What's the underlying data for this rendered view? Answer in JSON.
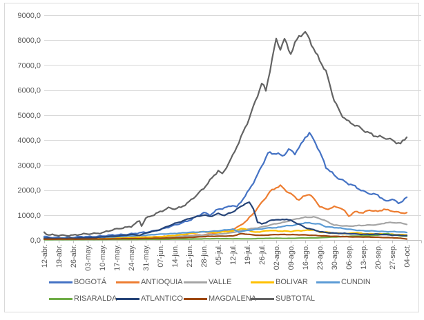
{
  "chart_data": {
    "type": "line",
    "title": "",
    "grid": true,
    "legend_position": "bottom",
    "x_axis": {
      "tick_labels": [
        "12-abr.",
        "19-abr.",
        "26-abr.",
        "03-may.",
        "10-may.",
        "17-may.",
        "24-may.",
        "31-may.",
        "07-jun.",
        "14-jun.",
        "21-jun.",
        "28-jun.",
        "05-jul.",
        "12-jul.",
        "19-jul.",
        "26-jul.",
        "02-ago.",
        "09-ago.",
        "16-ago.",
        "23-ago.",
        "30-ago.",
        "06-sep.",
        "13-sep.",
        "20-sep.",
        "27-sep.",
        "04-oct."
      ],
      "days_per_tick": 7
    },
    "y_axis": {
      "min": 0,
      "max": 9000,
      "step": 1000,
      "tick_labels": [
        "0,0",
        "1000,0",
        "2000,0",
        "3000,0",
        "4000,0",
        "5000,0",
        "6000,0",
        "7000,0",
        "8000,0",
        "9000,0"
      ]
    },
    "axis_colors": {
      "label": "#595959",
      "gridline": "#D9D9D9",
      "axis_line": "#BFBFBF"
    },
    "series": [
      {
        "name": "BOGOTÁ",
        "color": "#4472C4",
        "noise": 95,
        "anchors": [
          [
            0,
            140
          ],
          [
            3,
            90
          ],
          [
            7,
            95
          ],
          [
            14,
            110
          ],
          [
            21,
            130
          ],
          [
            28,
            160
          ],
          [
            35,
            200
          ],
          [
            42,
            250
          ],
          [
            49,
            300
          ],
          [
            56,
            420
          ],
          [
            63,
            580
          ],
          [
            70,
            800
          ],
          [
            74,
            950
          ],
          [
            77,
            1080
          ],
          [
            80,
            1000
          ],
          [
            84,
            1250
          ],
          [
            88,
            1300
          ],
          [
            91,
            1380
          ],
          [
            93,
            1300
          ],
          [
            98,
            1900
          ],
          [
            103,
            2600
          ],
          [
            108,
            3450
          ],
          [
            112,
            3500
          ],
          [
            115,
            3380
          ],
          [
            118,
            3600
          ],
          [
            121,
            3450
          ],
          [
            124,
            3800
          ],
          [
            126,
            4150
          ],
          [
            128,
            4300
          ],
          [
            131,
            3900
          ],
          [
            133,
            3500
          ],
          [
            136,
            2900
          ],
          [
            140,
            2600
          ],
          [
            145,
            2350
          ],
          [
            147,
            2250
          ],
          [
            154,
            1950
          ],
          [
            161,
            1800
          ],
          [
            165,
            1520
          ],
          [
            168,
            1650
          ],
          [
            171,
            1480
          ],
          [
            175,
            1700
          ]
        ]
      },
      {
        "name": "ANTIOQUIA",
        "color": "#ED7D31",
        "noise": 55,
        "anchors": [
          [
            0,
            60
          ],
          [
            14,
            70
          ],
          [
            28,
            85
          ],
          [
            42,
            100
          ],
          [
            56,
            130
          ],
          [
            70,
            170
          ],
          [
            77,
            210
          ],
          [
            84,
            290
          ],
          [
            91,
            430
          ],
          [
            95,
            600
          ],
          [
            98,
            800
          ],
          [
            101,
            1050
          ],
          [
            105,
            1500
          ],
          [
            109,
            1950
          ],
          [
            112,
            2100
          ],
          [
            114,
            2150
          ],
          [
            117,
            1950
          ],
          [
            119,
            1850
          ],
          [
            123,
            1620
          ],
          [
            126,
            1780
          ],
          [
            128,
            1830
          ],
          [
            131,
            1550
          ],
          [
            133,
            1350
          ],
          [
            136,
            1240
          ],
          [
            140,
            1330
          ],
          [
            143,
            1280
          ],
          [
            145,
            1150
          ],
          [
            147,
            950
          ],
          [
            150,
            1140
          ],
          [
            154,
            1100
          ],
          [
            157,
            1190
          ],
          [
            161,
            1130
          ],
          [
            164,
            1240
          ],
          [
            168,
            1170
          ],
          [
            172,
            1080
          ],
          [
            175,
            1070
          ]
        ]
      },
      {
        "name": "VALLE",
        "color": "#A5A5A5",
        "noise": 25,
        "anchors": [
          [
            0,
            50
          ],
          [
            14,
            60
          ],
          [
            28,
            75
          ],
          [
            42,
            95
          ],
          [
            56,
            120
          ],
          [
            70,
            160
          ],
          [
            77,
            190
          ],
          [
            84,
            230
          ],
          [
            91,
            300
          ],
          [
            98,
            430
          ],
          [
            105,
            520
          ],
          [
            112,
            650
          ],
          [
            116,
            720
          ],
          [
            119,
            790
          ],
          [
            123,
            860
          ],
          [
            126,
            900
          ],
          [
            130,
            930
          ],
          [
            133,
            870
          ],
          [
            136,
            760
          ],
          [
            140,
            590
          ],
          [
            147,
            560
          ],
          [
            154,
            580
          ],
          [
            161,
            620
          ],
          [
            165,
            690
          ],
          [
            168,
            690
          ],
          [
            172,
            680
          ],
          [
            175,
            640
          ]
        ]
      },
      {
        "name": "BOLIVAR",
        "color": "#FFC000",
        "noise": 25,
        "anchors": [
          [
            0,
            40
          ],
          [
            14,
            50
          ],
          [
            28,
            60
          ],
          [
            42,
            90
          ],
          [
            56,
            130
          ],
          [
            63,
            180
          ],
          [
            70,
            260
          ],
          [
            77,
            330
          ],
          [
            81,
            300
          ],
          [
            84,
            310
          ],
          [
            91,
            350
          ],
          [
            95,
            460
          ],
          [
            98,
            430
          ],
          [
            101,
            310
          ],
          [
            105,
            330
          ],
          [
            109,
            390
          ],
          [
            112,
            370
          ],
          [
            119,
            340
          ],
          [
            123,
            375
          ],
          [
            126,
            390
          ],
          [
            130,
            410
          ],
          [
            133,
            300
          ],
          [
            136,
            315
          ],
          [
            140,
            280
          ],
          [
            147,
            250
          ],
          [
            150,
            290
          ],
          [
            154,
            260
          ],
          [
            161,
            240
          ],
          [
            168,
            230
          ],
          [
            175,
            205
          ]
        ]
      },
      {
        "name": "CUNDIN",
        "color": "#5B9BD5",
        "noise": 22,
        "anchors": [
          [
            0,
            95
          ],
          [
            3,
            60
          ],
          [
            14,
            75
          ],
          [
            28,
            110
          ],
          [
            42,
            160
          ],
          [
            56,
            230
          ],
          [
            63,
            265
          ],
          [
            70,
            300
          ],
          [
            77,
            330
          ],
          [
            84,
            360
          ],
          [
            91,
            440
          ],
          [
            94,
            320
          ],
          [
            98,
            380
          ],
          [
            105,
            450
          ],
          [
            109,
            500
          ],
          [
            112,
            480
          ],
          [
            116,
            560
          ],
          [
            119,
            580
          ],
          [
            123,
            640
          ],
          [
            126,
            690
          ],
          [
            129,
            660
          ],
          [
            133,
            640
          ],
          [
            136,
            540
          ],
          [
            140,
            500
          ],
          [
            147,
            430
          ],
          [
            154,
            370
          ],
          [
            161,
            350
          ],
          [
            168,
            335
          ],
          [
            172,
            320
          ],
          [
            175,
            300
          ]
        ]
      },
      {
        "name": "RISARALDA",
        "color": "#70AD47",
        "noise": 10,
        "anchors": [
          [
            0,
            15
          ],
          [
            28,
            20
          ],
          [
            56,
            30
          ],
          [
            77,
            45
          ],
          [
            84,
            55
          ],
          [
            98,
            45
          ],
          [
            105,
            60
          ],
          [
            112,
            70
          ],
          [
            119,
            65
          ],
          [
            126,
            80
          ],
          [
            133,
            90
          ],
          [
            140,
            120
          ],
          [
            147,
            150
          ],
          [
            154,
            160
          ],
          [
            161,
            200
          ],
          [
            164,
            240
          ],
          [
            166,
            250
          ],
          [
            168,
            210
          ],
          [
            172,
            170
          ],
          [
            175,
            150
          ]
        ]
      },
      {
        "name": "ATLANTICO",
        "color": "#264478",
        "noise": 35,
        "anchors": [
          [
            0,
            70
          ],
          [
            7,
            60
          ],
          [
            14,
            70
          ],
          [
            21,
            90
          ],
          [
            28,
            120
          ],
          [
            35,
            160
          ],
          [
            42,
            220
          ],
          [
            46,
            180
          ],
          [
            49,
            280
          ],
          [
            56,
            420
          ],
          [
            63,
            660
          ],
          [
            70,
            860
          ],
          [
            74,
            930
          ],
          [
            77,
            1000
          ],
          [
            80,
            950
          ],
          [
            84,
            1060
          ],
          [
            87,
            980
          ],
          [
            91,
            1120
          ],
          [
            95,
            1350
          ],
          [
            97,
            1470
          ],
          [
            99,
            1500
          ],
          [
            101,
            1250
          ],
          [
            103,
            700
          ],
          [
            105,
            640
          ],
          [
            107,
            700
          ],
          [
            109,
            780
          ],
          [
            112,
            830
          ],
          [
            114,
            800
          ],
          [
            117,
            830
          ],
          [
            119,
            780
          ],
          [
            121,
            700
          ],
          [
            123,
            640
          ],
          [
            126,
            500
          ],
          [
            129,
            430
          ],
          [
            133,
            330
          ],
          [
            136,
            300
          ],
          [
            140,
            280
          ],
          [
            147,
            250
          ],
          [
            154,
            230
          ],
          [
            161,
            230
          ],
          [
            168,
            200
          ],
          [
            172,
            190
          ],
          [
            175,
            170
          ]
        ]
      },
      {
        "name": "MAGDALENA",
        "color": "#9E480E",
        "noise": 12,
        "anchors": [
          [
            0,
            35
          ],
          [
            14,
            35
          ],
          [
            28,
            40
          ],
          [
            42,
            55
          ],
          [
            56,
            70
          ],
          [
            70,
            100
          ],
          [
            77,
            140
          ],
          [
            84,
            150
          ],
          [
            91,
            165
          ],
          [
            95,
            250
          ],
          [
            98,
            230
          ],
          [
            101,
            200
          ],
          [
            105,
            190
          ],
          [
            112,
            215
          ],
          [
            119,
            220
          ],
          [
            126,
            200
          ],
          [
            133,
            175
          ],
          [
            140,
            145
          ],
          [
            147,
            130
          ],
          [
            154,
            120
          ],
          [
            161,
            110
          ],
          [
            168,
            90
          ],
          [
            172,
            70
          ],
          [
            175,
            40
          ]
        ]
      },
      {
        "name": "SUBTOTAL",
        "color": "#636363",
        "noise": 120,
        "anchors": [
          [
            0,
            310
          ],
          [
            2,
            200
          ],
          [
            7,
            180
          ],
          [
            14,
            200
          ],
          [
            21,
            235
          ],
          [
            28,
            300
          ],
          [
            35,
            430
          ],
          [
            42,
            560
          ],
          [
            46,
            760
          ],
          [
            47,
            560
          ],
          [
            49,
            850
          ],
          [
            56,
            1150
          ],
          [
            60,
            1280
          ],
          [
            63,
            1230
          ],
          [
            66,
            1300
          ],
          [
            70,
            1550
          ],
          [
            77,
            2050
          ],
          [
            84,
            2800
          ],
          [
            86,
            2650
          ],
          [
            91,
            3350
          ],
          [
            95,
            4100
          ],
          [
            98,
            4700
          ],
          [
            103,
            5800
          ],
          [
            105,
            6250
          ],
          [
            107,
            5950
          ],
          [
            112,
            8050
          ],
          [
            114,
            7700
          ],
          [
            116,
            8050
          ],
          [
            119,
            7450
          ],
          [
            123,
            8150
          ],
          [
            126,
            8300
          ],
          [
            128,
            8100
          ],
          [
            131,
            7500
          ],
          [
            133,
            7200
          ],
          [
            136,
            6700
          ],
          [
            140,
            5600
          ],
          [
            143,
            5100
          ],
          [
            147,
            4720
          ],
          [
            154,
            4400
          ],
          [
            161,
            4150
          ],
          [
            168,
            3980
          ],
          [
            172,
            3870
          ],
          [
            175,
            4150
          ]
        ]
      }
    ],
    "legend_rows": [
      [
        "BOGOTÁ",
        "ANTIOQUIA",
        "VALLE",
        "BOLIVAR",
        "CUNDIN"
      ],
      [
        "RISARALDA",
        "ATLANTICO",
        "MAGDALENA",
        "SUBTOTAL"
      ]
    ]
  }
}
